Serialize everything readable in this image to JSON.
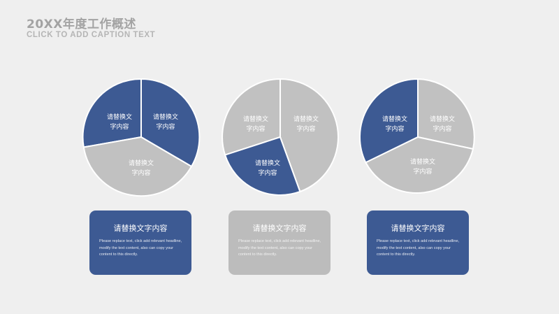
{
  "header": {
    "title": "20XX年度工作概述",
    "subtitle": "CLICK TO ADD CAPTION TEXT"
  },
  "colors": {
    "accent": "#3d5a93",
    "neutral": "#c1c1c1",
    "background": "#efefef"
  },
  "charts": [
    {
      "slices": [
        {
          "label_line1": "请替换文",
          "label_line2": "字内容",
          "color": "blue"
        },
        {
          "label_line1": "请替换文",
          "label_line2": "字内容",
          "color": "blue"
        },
        {
          "label_line1": "请替换文",
          "label_line2": "字内容",
          "color": "gray"
        }
      ]
    },
    {
      "slices": [
        {
          "label_line1": "请替换文",
          "label_line2": "字内容",
          "color": "gray"
        },
        {
          "label_line1": "请替换文",
          "label_line2": "字内容",
          "color": "gray"
        },
        {
          "label_line1": "请替换文",
          "label_line2": "字内容",
          "color": "blue"
        }
      ]
    },
    {
      "slices": [
        {
          "label_line1": "请替换文",
          "label_line2": "字内容",
          "color": "blue"
        },
        {
          "label_line1": "请替换文",
          "label_line2": "字内容",
          "color": "gray"
        },
        {
          "label_line1": "请替换文",
          "label_line2": "字内容",
          "color": "gray"
        }
      ]
    }
  ],
  "cards": [
    {
      "title": "请替换文字内容",
      "body": "Please replace text, click add relevant headline, modify the text content, also can copy your content to this directly."
    },
    {
      "title": "请替换文字内容",
      "body": "Please replace text, click add relevant headline, modify the text content, also can copy your content to this directly."
    },
    {
      "title": "请替换文字内容",
      "body": "Please replace text, click add relevant headline, modify the text content, also can copy your content to this directly."
    }
  ]
}
